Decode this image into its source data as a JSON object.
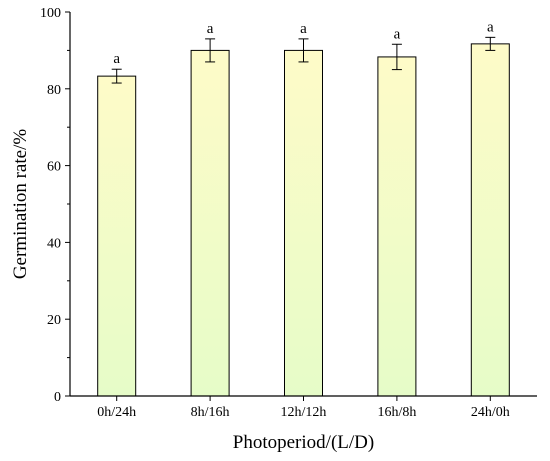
{
  "chart_data": {
    "type": "bar",
    "title": "",
    "xlabel": "Photoperiod/(L/D)",
    "ylabel": "Germination rate/%",
    "categories": [
      "0h/24h",
      "8h/16h",
      "12h/12h",
      "16h/8h",
      "24h/0h"
    ],
    "values": [
      83.3,
      90.0,
      90.0,
      88.3,
      91.7
    ],
    "errors": [
      1.8,
      3.0,
      3.0,
      3.3,
      1.7
    ],
    "significance": [
      "a",
      "a",
      "a",
      "a",
      "a"
    ],
    "ylim": [
      0,
      100
    ],
    "yticks": [
      0,
      20,
      40,
      60,
      80,
      100
    ],
    "grid": false,
    "bar_fill_top": "#fefbc8",
    "bar_fill_bottom": "#e6fcc8",
    "bar_stroke": "#000000"
  }
}
